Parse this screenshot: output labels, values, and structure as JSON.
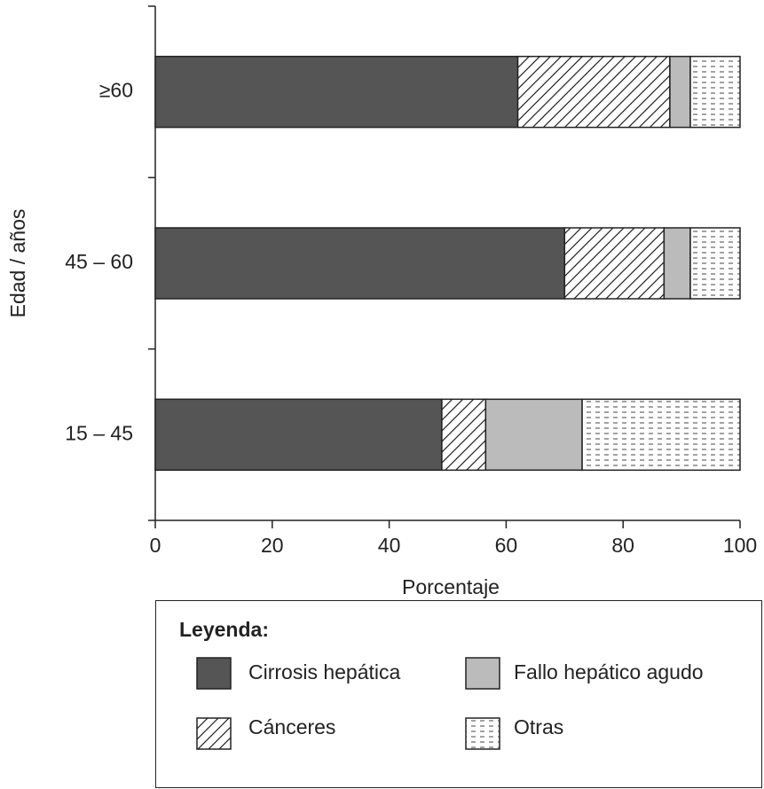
{
  "chart_data": {
    "type": "stacked-barh",
    "ylabel": "Edad / años",
    "xlabel": "Porcentaje",
    "categories": [
      "15 – 45",
      "45 – 60",
      "≥60"
    ],
    "series": [
      {
        "name": "Cirrosis hepática",
        "color": "#555555",
        "pattern": "solid",
        "values": [
          49,
          70,
          62
        ]
      },
      {
        "name": "Cánceres",
        "color": "#ffffff",
        "pattern": "hatch",
        "values": [
          7.5,
          17,
          26
        ]
      },
      {
        "name": "Fallo hepático agudo",
        "color": "#bbbbbb",
        "pattern": "solid",
        "values": [
          16.5,
          4.5,
          3.5
        ]
      },
      {
        "name": "Otras",
        "color": "#ffffff",
        "pattern": "dash",
        "values": [
          27,
          8.5,
          8.5
        ]
      }
    ],
    "xlim": [
      0,
      100
    ],
    "xticks": [
      0,
      20,
      40,
      60,
      80,
      100
    ],
    "legend_title": "Leyenda:"
  }
}
